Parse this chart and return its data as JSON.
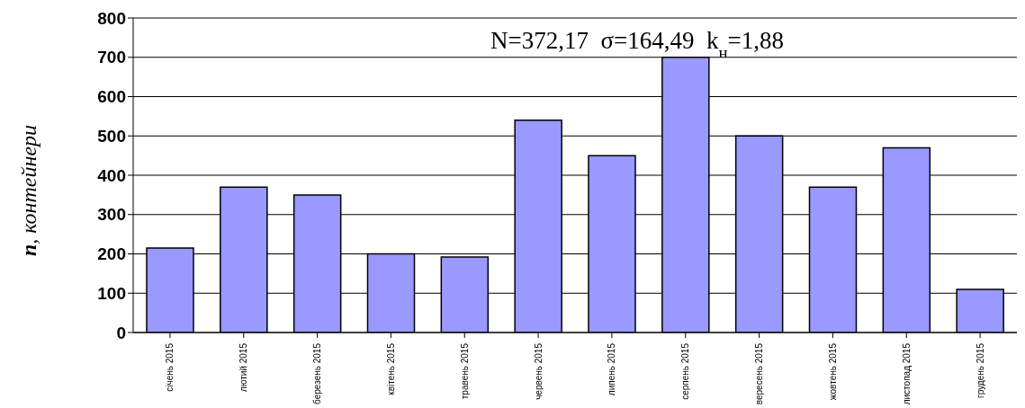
{
  "chart_data": {
    "type": "bar",
    "ylabel": "n, контейнери",
    "categories": [
      "січень 2015",
      "лютий 2015",
      "березень 2015",
      "квітень 2015",
      "травень 2015",
      "червень 2015",
      "липень 2015",
      "серпень 2015",
      "вересень 2015",
      "жовтень 2015",
      "листопад 2015",
      "грудень 2015"
    ],
    "values": [
      215,
      370,
      350,
      200,
      192,
      540,
      450,
      700,
      500,
      370,
      470,
      110
    ],
    "color": "#9999ff",
    "ylim": [
      0,
      800
    ],
    "yticks": [
      0,
      100,
      200,
      300,
      400,
      500,
      600,
      700,
      800
    ],
    "grid": "y",
    "annotations": [
      "N=372,17  σ=164,49  k$_{н}$=1,88"
    ]
  }
}
